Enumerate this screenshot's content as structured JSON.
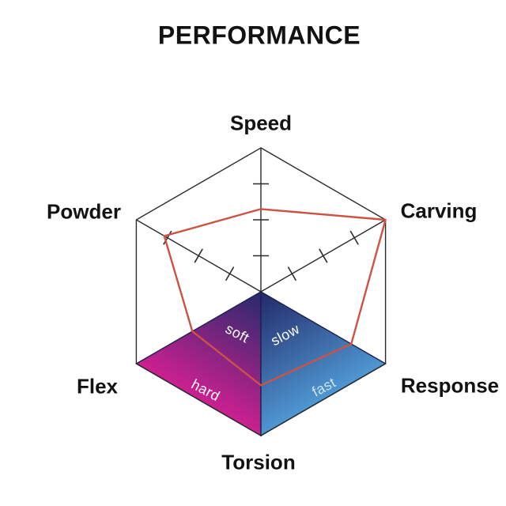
{
  "chart_data": {
    "type": "radar",
    "title": "PERFORMANCE",
    "axes": [
      "Speed",
      "Carving",
      "Response",
      "Torsion",
      "Flex",
      "Powder"
    ],
    "values": [
      2.3,
      4.0,
      2.9,
      2.6,
      2.2,
      3.1
    ],
    "max": 4,
    "ticks": [
      1,
      2,
      3
    ],
    "tick_axes": [
      "Speed",
      "Carving",
      "Powder"
    ],
    "series_color": "#cc5244",
    "axis_color": "#2b2b2b",
    "sector_edge_color": "#1c2152",
    "regions": [
      {
        "name": "flex-soft",
        "label": "soft",
        "color": "#ffffff"
      },
      {
        "name": "torsion-slow",
        "label": "slow",
        "color": "#ffffff"
      },
      {
        "name": "flex-hard",
        "label": "hard",
        "color": "#ffffff"
      },
      {
        "name": "torsion-fast",
        "label": "fast",
        "color": "#cfe4f6"
      }
    ],
    "gradients": {
      "flex_torsion": [
        "#262a6d",
        "#cc2090"
      ],
      "torsion_response": [
        "#232968",
        "#4e97d1"
      ]
    },
    "layout_hints": {
      "legend": "none",
      "grid": "tick-marks-only",
      "shape": "hexagon"
    }
  }
}
